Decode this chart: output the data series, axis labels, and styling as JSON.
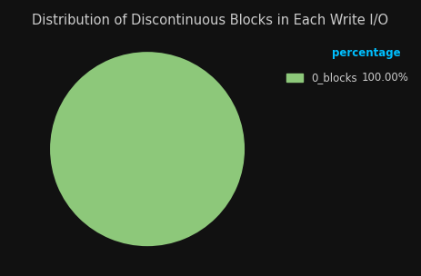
{
  "title": "Distribution of Discontinuous Blocks in Each Write I/O",
  "slices": [
    100.0
  ],
  "labels": [
    "0_blocks"
  ],
  "colors": [
    "#8dc87a"
  ],
  "background_color": "#111111",
  "title_color": "#cccccc",
  "title_fontsize": 10.5,
  "legend_header": "percentage",
  "legend_header_color": "#00bfff",
  "legend_text_color": "#cccccc",
  "legend_value": "100.00%",
  "figsize": [
    4.63,
    3.04
  ],
  "dpi": 100
}
